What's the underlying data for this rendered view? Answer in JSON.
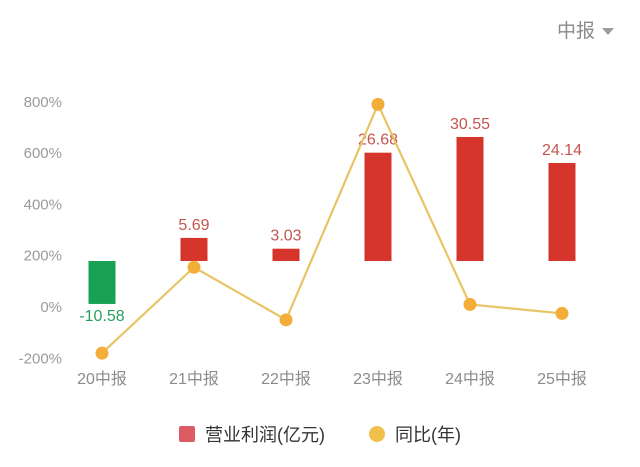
{
  "header": {
    "period_label": "中报"
  },
  "legend": {
    "items": [
      {
        "label": "营业利润(亿元)",
        "marker": "square"
      },
      {
        "label": "同比(年)",
        "marker": "circle"
      }
    ]
  },
  "colors": {
    "bar_positive": "#d6352b",
    "bar_negative": "#18a053",
    "value_label_positive": "#c4564f",
    "value_label_negative": "#2aa05f",
    "line": "#e9c466",
    "point": "#f2ae38",
    "y_axis_text": "#9b9b9b",
    "x_axis_text": "#8c8c8c",
    "legend_square": "#dd5b62",
    "legend_dot": "#f0c04a",
    "legend_text": "#333333",
    "dropdown_text": "#8a8a8a",
    "background": "#ffffff"
  },
  "chart_data": {
    "type": "bar",
    "subtype": "bar-with-line-overlay",
    "categories": [
      "20中报",
      "21中报",
      "22中报",
      "23中报",
      "24中报",
      "25中报"
    ],
    "series": [
      {
        "name": "营业利润(亿元)",
        "type": "bar",
        "unit": "亿元",
        "values": [
          -10.58,
          5.69,
          3.03,
          26.68,
          30.55,
          24.14
        ],
        "labels": [
          "-10.58",
          "5.69",
          "3.03",
          "26.68",
          "30.55",
          "24.14"
        ]
      },
      {
        "name": "同比(年)",
        "type": "line",
        "unit": "%",
        "values": [
          -180,
          155,
          -50,
          790,
          10,
          -25
        ]
      }
    ],
    "y_axis": {
      "side": "left",
      "applies_to": "同比(年)",
      "range": [
        -200,
        800
      ],
      "ticks": [
        {
          "label": "800%",
          "value": 800
        },
        {
          "label": "600%",
          "value": 600
        },
        {
          "label": "400%",
          "value": 400
        },
        {
          "label": "200%",
          "value": 200
        },
        {
          "label": "0%",
          "value": 0
        },
        {
          "label": "-200%",
          "value": -200
        }
      ],
      "grid": false
    },
    "legend_position": "bottom",
    "title": ""
  }
}
